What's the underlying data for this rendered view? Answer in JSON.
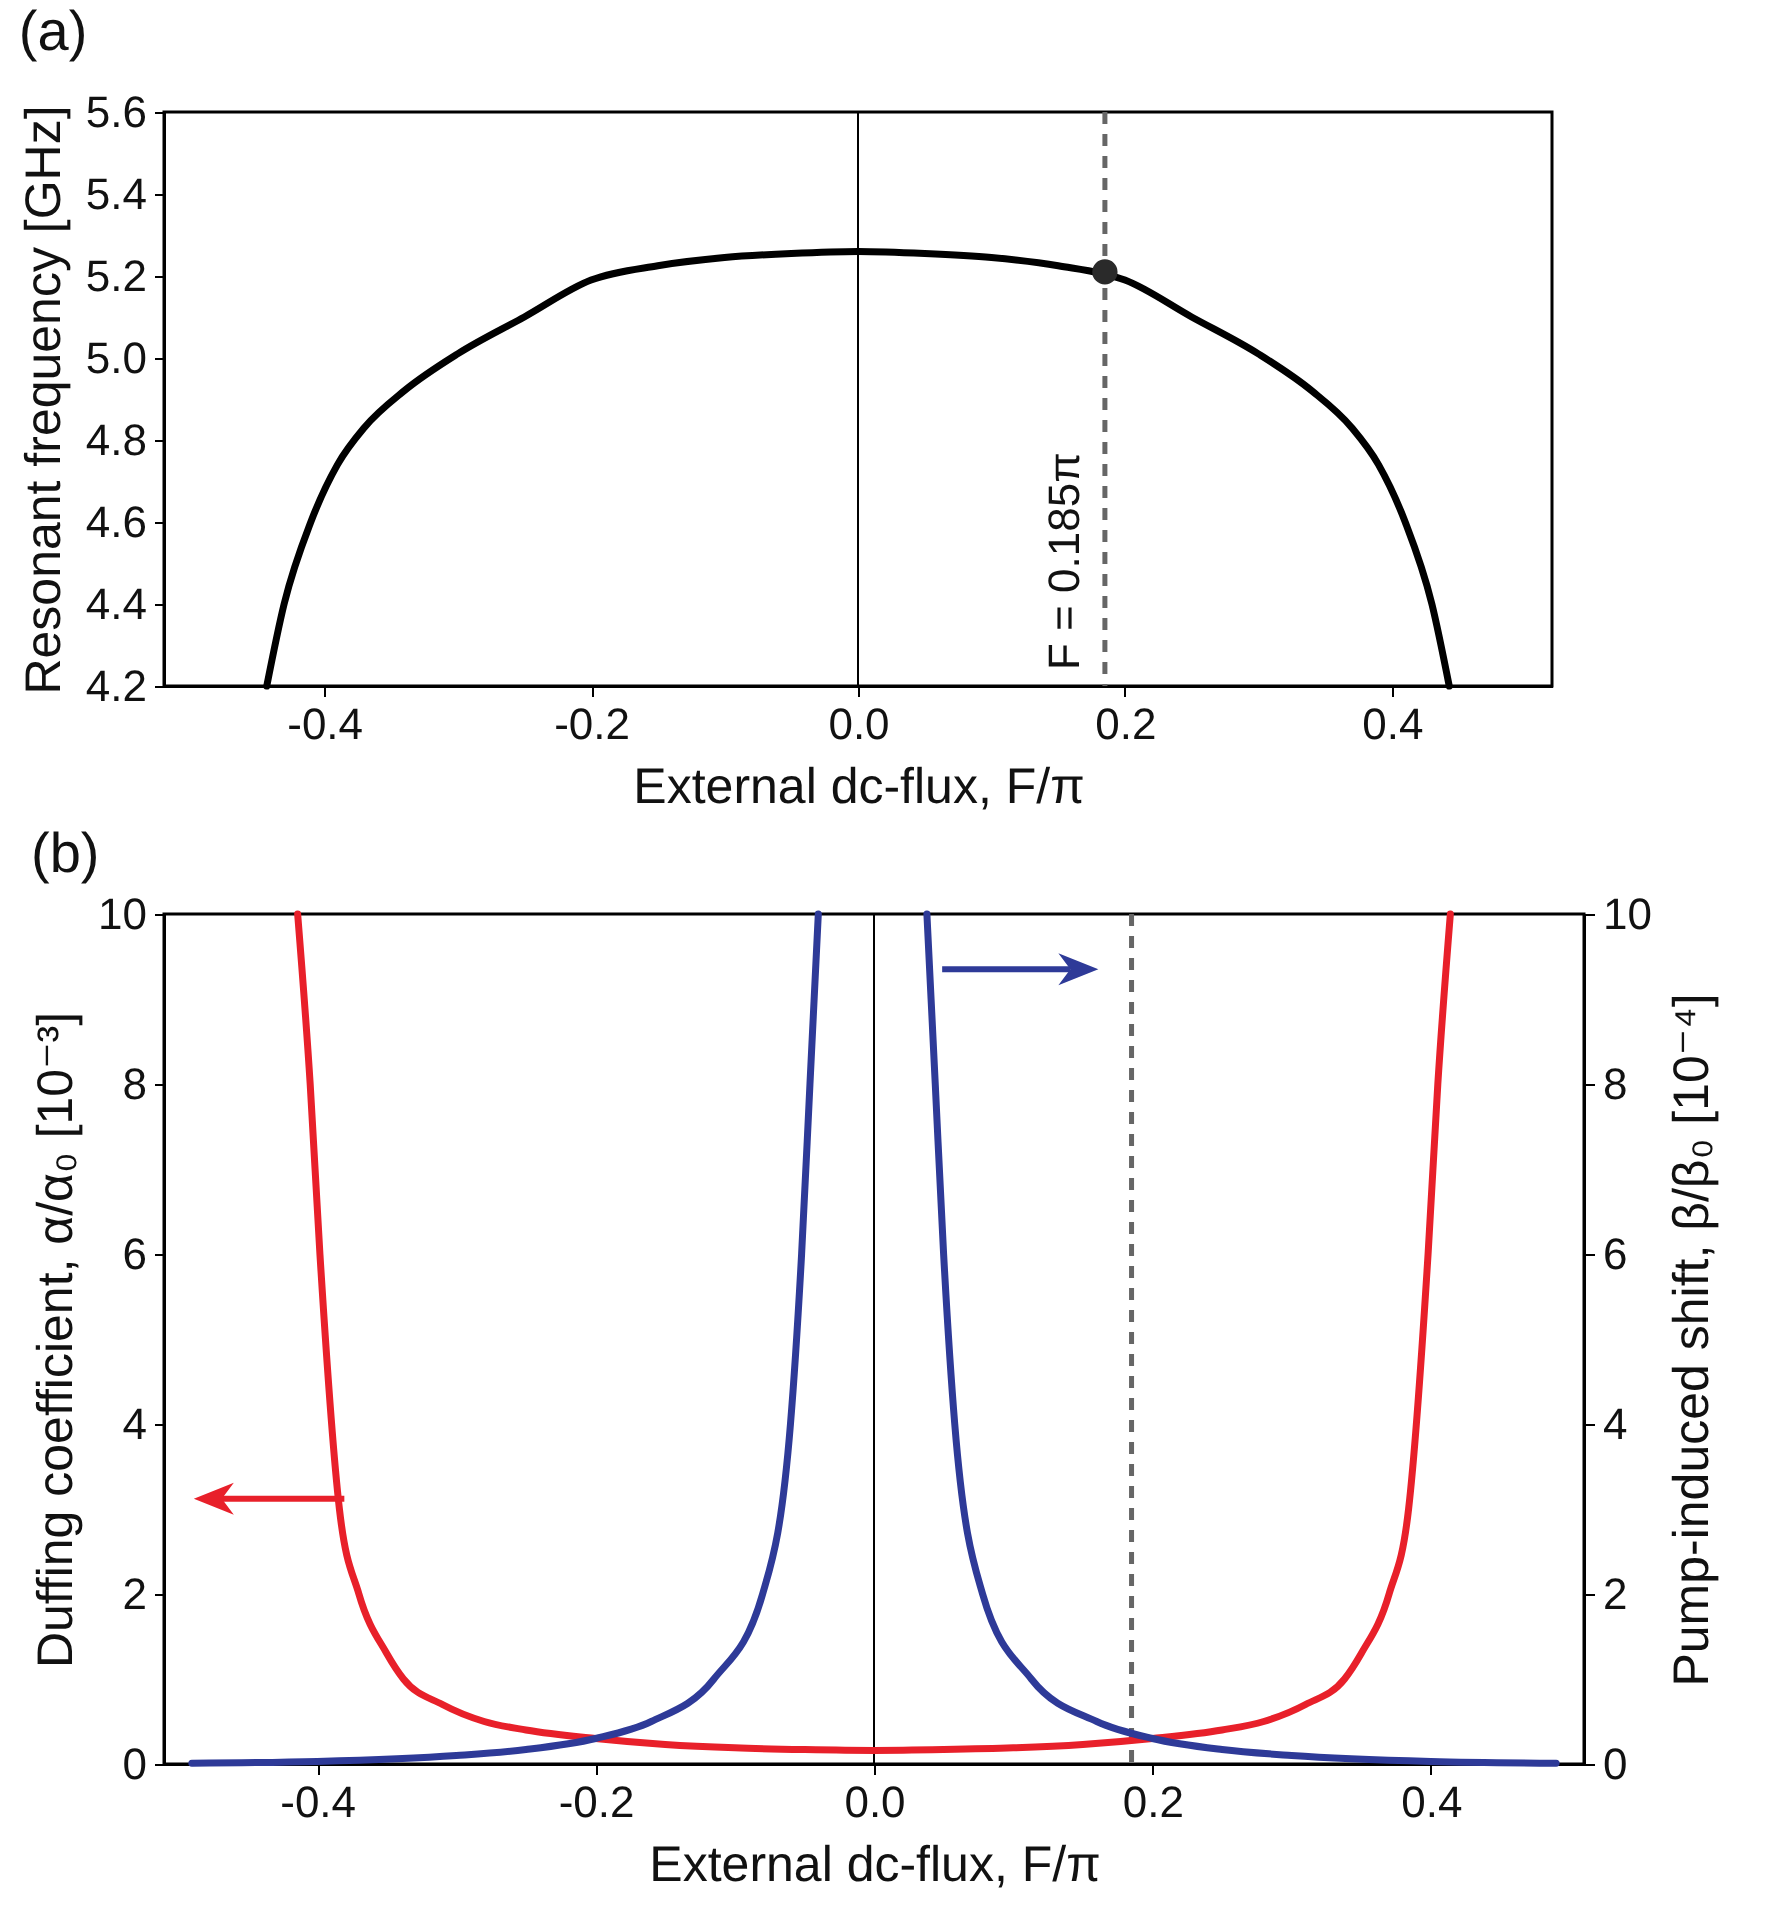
{
  "chart_data": [
    {
      "type": "line",
      "title": "(a)",
      "xlabel": "External dc-flux, F/π",
      "ylabel": "Resonant frequency [GHz]",
      "xlim": [
        -0.52,
        0.52
      ],
      "xticks": [
        -0.4,
        -0.2,
        {
          "value": 0,
          "label": "0.0"
        },
        0.2,
        0.4
      ],
      "ylim": [
        4.2,
        5.6
      ],
      "yticks": [
        4.2,
        4.4,
        4.6,
        4.8,
        {
          "value": 5,
          "label": "5.0"
        },
        5.2,
        5.4,
        5.6
      ],
      "grid": false,
      "series": [
        {
          "color": "#000000",
          "x": [
            -0.443,
            -0.43,
            -0.41,
            -0.39,
            -0.37,
            -0.34,
            -0.3,
            -0.25,
            -0.2,
            -0.15,
            -0.1,
            -0.05,
            0,
            0.05,
            0.1,
            0.15,
            0.2,
            0.25,
            0.3,
            0.34,
            0.37,
            0.39,
            0.41,
            0.43,
            0.443
          ],
          "values": [
            4.2,
            4.4,
            4.6,
            4.74,
            4.83,
            4.92,
            5.01,
            5.1,
            5.19,
            5.225,
            5.245,
            5.255,
            5.26,
            5.255,
            5.245,
            5.225,
            5.19,
            5.1,
            5.01,
            4.92,
            4.83,
            4.74,
            4.6,
            4.4,
            4.2
          ]
        },
        {
          "type": "scatter",
          "marker": "circle",
          "color": "#2a2a2a",
          "x": [
            0.185
          ],
          "values": [
            5.21
          ]
        }
      ],
      "ref_lines": [
        {
          "axis": "x",
          "value": 0,
          "color": "#000000",
          "line_style": "solid"
        },
        {
          "axis": "x",
          "value": 0.185,
          "label": "F = 0.185π",
          "color": "#666666",
          "line_style": "dashed"
        }
      ]
    },
    {
      "type": "line",
      "title": "(b)",
      "xlabel": "External dc-flux, F/π",
      "ylabel": "Duffing coefficient, α/α₀ [10⁻³]",
      "y2label": "Pump-induced shift, β/β₀ [10⁻⁴]",
      "xlim": [
        -0.51,
        0.51
      ],
      "xticks": [
        -0.4,
        -0.2,
        {
          "value": 0,
          "label": "0.0"
        },
        0.2,
        0.4
      ],
      "ylim": [
        0,
        10
      ],
      "yticks": [
        0,
        2,
        4,
        6,
        8,
        10
      ],
      "y2lim": [
        0,
        10
      ],
      "y2ticks": [
        0,
        2,
        4,
        6,
        8,
        10
      ],
      "grid": false,
      "series": [
        {
          "color": "#e8202a",
          "x": [
            -0.414,
            -0.405,
            -0.398,
            -0.384,
            -0.37,
            -0.35,
            -0.338,
            -0.31,
            -0.28,
            -0.25,
            -0.2,
            -0.15,
            -0.1,
            -0.05,
            0,
            0.05,
            0.1,
            0.15,
            0.2,
            0.25,
            0.28,
            0.31,
            0.338,
            0.35,
            0.37,
            0.384,
            0.398,
            0.405,
            0.414
          ],
          "values": [
            10,
            8,
            6,
            3,
            2,
            1.3,
            1,
            0.7,
            0.5,
            0.4,
            0.3,
            0.23,
            0.19,
            0.17,
            0.16,
            0.17,
            0.19,
            0.23,
            0.3,
            0.4,
            0.5,
            0.7,
            1,
            1.3,
            2,
            3,
            6,
            8,
            10
          ]
        },
        {
          "axis": "y2",
          "color": "#2e3a98",
          "x": [
            -0.49,
            -0.4,
            -0.3,
            -0.25,
            -0.2,
            -0.16,
            -0.115,
            -0.08,
            -0.06,
            -0.052,
            -0.046,
            -0.04
          ],
          "values": [
            0.01,
            0.03,
            0.1,
            0.17,
            0.3,
            0.5,
            1,
            2,
            4,
            6,
            8,
            10
          ]
        },
        {
          "axis": "y2",
          "color": "#2e3a98",
          "x": [
            0.038,
            0.044,
            0.05,
            0.058,
            0.078,
            0.113,
            0.16,
            0.2,
            0.25,
            0.3,
            0.4,
            0.49
          ],
          "values": [
            10,
            8,
            6,
            4,
            2,
            1,
            0.5,
            0.3,
            0.17,
            0.1,
            0.03,
            0.01
          ]
        }
      ],
      "ref_lines": [
        {
          "axis": "x",
          "value": 0,
          "color": "#000000",
          "line_style": "solid"
        },
        {
          "axis": "x",
          "value": 0.185,
          "color": "#666666",
          "line_style": "dashed"
        }
      ]
    }
  ]
}
